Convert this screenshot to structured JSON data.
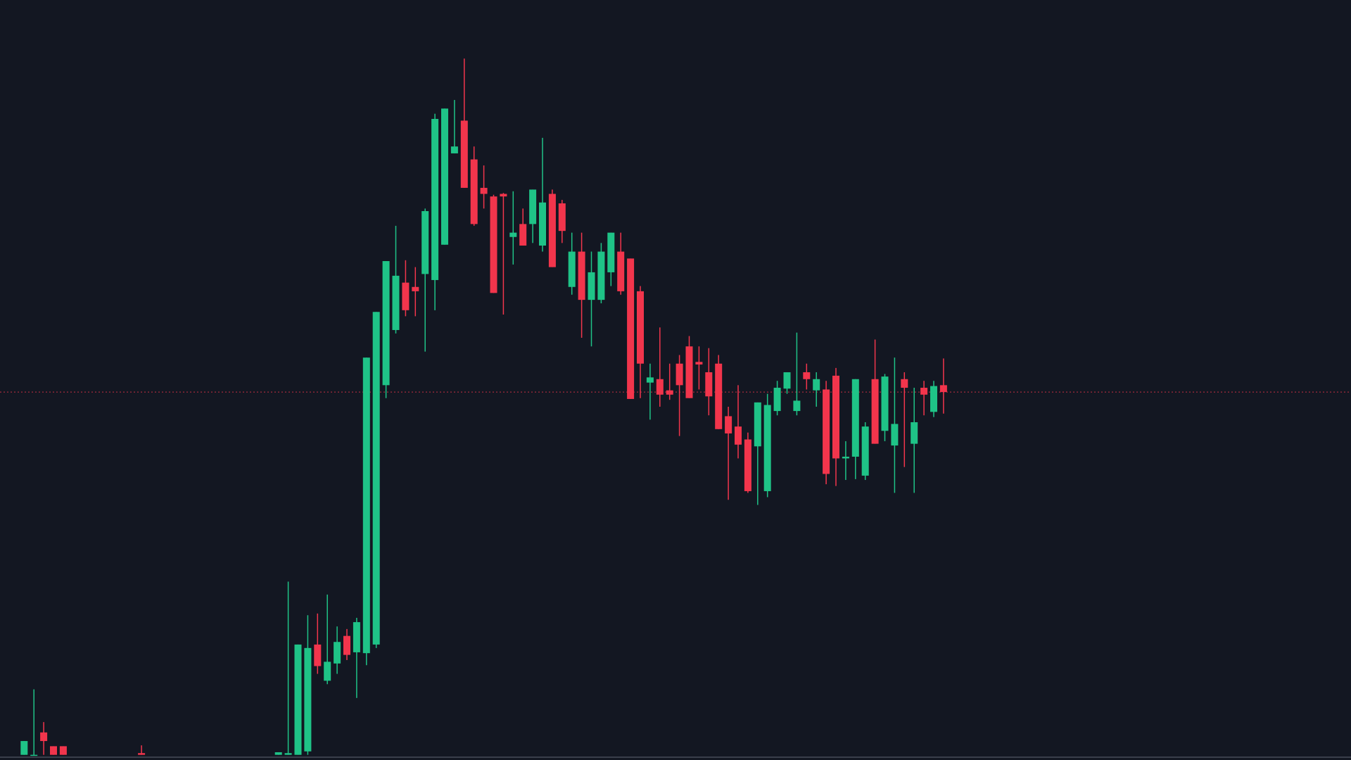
{
  "chart_data": {
    "type": "candlestick",
    "up_color": "#1fc387",
    "down_color": "#f2354c",
    "price_line_color": "#f2354c",
    "ylim": [
      0,
      882
    ],
    "price_line": 427,
    "open": [
      6,
      6,
      32,
      16,
      16,
      null,
      null,
      null,
      null,
      null,
      null,
      null,
      8,
      null,
      null,
      null,
      null,
      null,
      null,
      null,
      null,
      null,
      null,
      null,
      null,
      null,
      6,
      6,
      6,
      10,
      134,
      92,
      112,
      144,
      125,
      124,
      134,
      435,
      499,
      554,
      549,
      564,
      557,
      598,
      704,
      742,
      697,
      664,
      654,
      657,
      607,
      622,
      622,
      597,
      657,
      646,
      549,
      590,
      534,
      534,
      566,
      590,
      582,
      544,
      438,
      442,
      429,
      460,
      480,
      462,
      450,
      460,
      399,
      387,
      372,
      364,
      312,
      405,
      431,
      405,
      450,
      429,
      430,
      446,
      350,
      352,
      330,
      442,
      382,
      365,
      442,
      367,
      432,
      404,
      435
    ],
    "high": [
      22,
      82,
      44,
      16,
      16,
      null,
      null,
      null,
      null,
      null,
      null,
      null,
      17,
      null,
      null,
      null,
      null,
      null,
      null,
      null,
      null,
      null,
      null,
      null,
      null,
      null,
      9,
      207,
      134,
      168,
      170,
      192,
      155,
      152,
      165,
      467,
      520,
      579,
      620,
      580,
      572,
      640,
      750,
      756,
      766,
      814,
      712,
      690,
      656,
      658,
      660,
      640,
      662,
      722,
      662,
      650,
      612,
      612,
      590,
      600,
      612,
      612,
      582,
      550,
      460,
      502,
      460,
      470,
      492,
      480,
      478,
      470,
      410,
      435,
      380,
      415,
      425,
      440,
      450,
      496,
      460,
      450,
      440,
      455,
      370,
      442,
      392,
      488,
      448,
      467,
      450,
      432,
      440,
      440,
      466
    ],
    "low": [
      6,
      5,
      6,
      6,
      6,
      null,
      null,
      null,
      null,
      null,
      null,
      null,
      6,
      null,
      null,
      null,
      null,
      null,
      null,
      null,
      null,
      null,
      null,
      null,
      null,
      null,
      6,
      6,
      6,
      6,
      100,
      88,
      100,
      116,
      72,
      110,
      130,
      420,
      495,
      515,
      515,
      474,
      522,
      598,
      704,
      664,
      620,
      640,
      542,
      517,
      575,
      597,
      600,
      590,
      572,
      600,
      540,
      490,
      480,
      530,
      550,
      540,
      419,
      420,
      395,
      410,
      418,
      376,
      420,
      430,
      400,
      384,
      302,
      350,
      310,
      296,
      305,
      400,
      425,
      400,
      430,
      410,
      320,
      318,
      325,
      326,
      325,
      367,
      370,
      310,
      340,
      310,
      400,
      398,
      402
    ],
    "close": [
      22,
      6,
      22,
      6,
      6,
      null,
      null,
      null,
      null,
      null,
      null,
      null,
      6,
      null,
      null,
      null,
      null,
      null,
      null,
      null,
      null,
      null,
      null,
      null,
      null,
      null,
      9,
      8,
      134,
      130,
      109,
      114,
      137,
      122,
      160,
      467,
      520,
      579,
      562,
      522,
      544,
      637,
      744,
      756,
      712,
      664,
      622,
      657,
      542,
      654,
      612,
      597,
      662,
      647,
      572,
      614,
      590,
      534,
      566,
      590,
      612,
      544,
      419,
      460,
      444,
      424,
      424,
      435,
      420,
      459,
      422,
      384,
      379,
      366,
      312,
      415,
      412,
      432,
      450,
      417,
      442,
      442,
      332,
      350,
      352,
      442,
      387,
      367,
      445,
      390,
      432,
      392,
      424,
      434,
      427
    ]
  }
}
